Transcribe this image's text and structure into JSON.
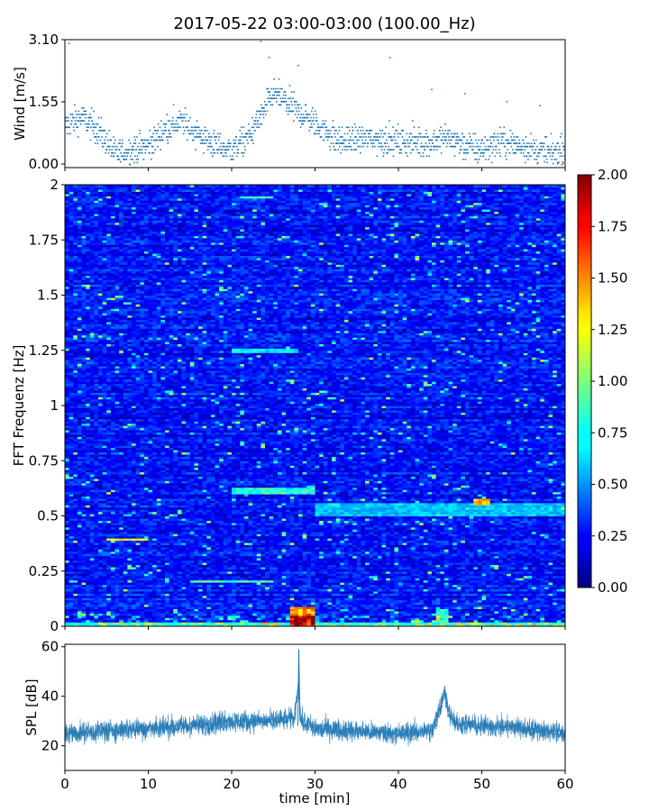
{
  "title": "2017-05-22 03:00-03:00 (100.00_Hz)",
  "chart_data": [
    {
      "id": "wind",
      "type": "scatter",
      "ylabel": "Wind [m/s]",
      "xlim": [
        0,
        60
      ],
      "ylim": [
        0,
        3.1
      ],
      "yticks": [
        0.0,
        1.55,
        3.1
      ],
      "ytick_labels": [
        "0.00",
        "1.55",
        "3.10"
      ],
      "color": "#1f77b4",
      "trend": [
        [
          0,
          1.0
        ],
        [
          2,
          1.2
        ],
        [
          4,
          0.9
        ],
        [
          6,
          0.3
        ],
        [
          8,
          0.4
        ],
        [
          10,
          0.5
        ],
        [
          12,
          0.9
        ],
        [
          14,
          1.1
        ],
        [
          16,
          0.8
        ],
        [
          18,
          0.5
        ],
        [
          20,
          0.4
        ],
        [
          22,
          0.7
        ],
        [
          24,
          1.4
        ],
        [
          25,
          1.8
        ],
        [
          27,
          1.5
        ],
        [
          29,
          1.2
        ],
        [
          31,
          0.9
        ],
        [
          33,
          0.6
        ],
        [
          36,
          0.7
        ],
        [
          40,
          0.6
        ],
        [
          44,
          0.6
        ],
        [
          46,
          0.7
        ],
        [
          48,
          0.5
        ],
        [
          50,
          0.4
        ],
        [
          52,
          0.6
        ],
        [
          55,
          0.5
        ],
        [
          58,
          0.3
        ],
        [
          60,
          0.4
        ]
      ],
      "peaks": [
        [
          0.5,
          3.05
        ],
        [
          23.5,
          3.1
        ],
        [
          24.5,
          2.7
        ],
        [
          28,
          2.5
        ],
        [
          39,
          2.7
        ],
        [
          44,
          1.9
        ],
        [
          48,
          1.8
        ],
        [
          53,
          1.6
        ],
        [
          57,
          1.5
        ]
      ]
    },
    {
      "id": "spectrogram",
      "type": "heatmap",
      "ylabel": "FFT Frequenz [Hz]",
      "xlim": [
        0,
        60
      ],
      "ylim": [
        0,
        2
      ],
      "yticks": [
        0,
        0.25,
        0.5,
        0.75,
        1,
        1.25,
        1.5,
        1.75,
        2
      ],
      "ytick_labels": [
        "0",
        "0.25",
        "0.5",
        "0.75",
        "1",
        "1.25",
        "1.5",
        "1.75",
        "2"
      ],
      "colormap": "jet",
      "clim": [
        0,
        2
      ],
      "colorbar_ticks": [
        "0.00",
        "0.25",
        "0.50",
        "0.75",
        "1.00",
        "1.25",
        "1.50",
        "1.75",
        "2.00"
      ],
      "features": [
        {
          "x": [
            27,
            30
          ],
          "f": [
            0,
            0.05
          ],
          "value": 2.0
        },
        {
          "x": [
            27,
            30
          ],
          "f": [
            0.05,
            0.09
          ],
          "value": 1.6
        },
        {
          "x": [
            0,
            60
          ],
          "f": [
            0,
            0.02
          ],
          "value": 0.9
        },
        {
          "x": [
            44.5,
            46
          ],
          "f": [
            0,
            0.08
          ],
          "value": 0.9
        },
        {
          "x": [
            49,
            51
          ],
          "f": [
            0.55,
            0.58
          ],
          "value": 1.5
        },
        {
          "x": [
            5,
            10
          ],
          "f": [
            0.39,
            0.4
          ],
          "value": 1.3
        },
        {
          "x": [
            15,
            25
          ],
          "f": [
            0.2,
            0.21
          ],
          "value": 1.0
        },
        {
          "x": [
            20,
            30
          ],
          "f": [
            0.6,
            0.63
          ],
          "value": 0.9
        },
        {
          "x": [
            30,
            60
          ],
          "f": [
            0.5,
            0.56
          ],
          "value": 0.7
        },
        {
          "x": [
            20,
            28
          ],
          "f": [
            1.24,
            1.26
          ],
          "value": 0.8
        },
        {
          "x": [
            21,
            25
          ],
          "f": [
            1.94,
            1.95
          ],
          "value": 0.9
        }
      ]
    },
    {
      "id": "spl",
      "type": "line",
      "ylabel": "SPL [dB]",
      "xlabel": "time [min]",
      "xlim": [
        0,
        60
      ],
      "ylim": [
        10,
        61
      ],
      "yticks": [
        20,
        40,
        60
      ],
      "ytick_labels": [
        "20",
        "40",
        "60"
      ],
      "xticks": [
        0,
        10,
        20,
        30,
        40,
        50,
        60
      ],
      "xtick_labels": [
        "0",
        "10",
        "20",
        "30",
        "40",
        "50",
        "60"
      ],
      "color": "#1f77b4",
      "mean": [
        [
          0,
          25
        ],
        [
          5,
          26
        ],
        [
          10,
          27
        ],
        [
          15,
          28
        ],
        [
          20,
          30
        ],
        [
          25,
          30
        ],
        [
          27.5,
          31
        ],
        [
          28,
          45
        ],
        [
          28.3,
          30
        ],
        [
          30,
          27
        ],
        [
          35,
          26
        ],
        [
          40,
          25
        ],
        [
          44,
          26
        ],
        [
          45,
          35
        ],
        [
          45.5,
          42
        ],
        [
          46,
          34
        ],
        [
          47,
          29
        ],
        [
          50,
          28
        ],
        [
          55,
          27
        ],
        [
          60,
          25
        ]
      ]
    }
  ]
}
